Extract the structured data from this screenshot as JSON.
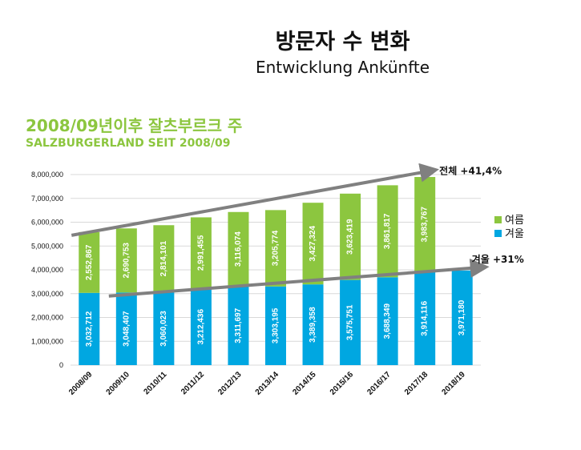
{
  "header": {
    "title_ko": "방문자 수 변화",
    "title_de": "Entwicklung Ankünfte",
    "subtitle_ko": "2008/09년이후 잘츠부르크 주",
    "subtitle_de": "SALZBURGERLAND SEIT 2008/09"
  },
  "chart_data": {
    "type": "bar",
    "stacked": true,
    "categories": [
      "2008/09",
      "2009/10",
      "2010/11",
      "2011/12",
      "2012/13",
      "2013/14",
      "2014/15",
      "2015/16",
      "2016/17",
      "2017/18",
      "2018/19"
    ],
    "series": [
      {
        "name": "겨울",
        "color": "#00a7e1",
        "values": [
          3032712,
          3048407,
          3060023,
          3212436,
          3311697,
          3303195,
          3389358,
          3575751,
          3688349,
          3914116,
          3971180
        ],
        "labels": [
          "3,032,712",
          "3,048,407",
          "3,060,023",
          "3,212,436",
          "3,311,697",
          "3,303,195",
          "3,389,358",
          "3,575,751",
          "3,688,349",
          "3,914,116",
          "3,971,180"
        ]
      },
      {
        "name": "여름",
        "color": "#8cc63f",
        "values": [
          2552867,
          2690753,
          2814101,
          2991455,
          3116074,
          3205774,
          3427324,
          3623419,
          3861817,
          3983767,
          null
        ],
        "labels": [
          "2,552,867",
          "2,690,753",
          "2,814,101",
          "2,991,455",
          "3,116,074",
          "3,205,774",
          "3,427,324",
          "3,623,419",
          "3,861,817",
          "3,983,767",
          ""
        ]
      }
    ],
    "ylim": [
      0,
      8000000
    ],
    "yticks": [
      0,
      1000000,
      2000000,
      3000000,
      4000000,
      5000000,
      6000000,
      7000000,
      8000000
    ],
    "ytick_labels": [
      "0",
      "1,000,000",
      "2,000,000",
      "3,000,000",
      "4,000,000",
      "5,000,000",
      "6,000,000",
      "7,000,000",
      "8,000,000"
    ],
    "grid": true,
    "legend_position": "right",
    "legend": [
      {
        "name": "여름",
        "color": "#8cc63f"
      },
      {
        "name": "겨울",
        "color": "#00a7e1"
      }
    ],
    "annotations": [
      {
        "text": "전체 +41,4%",
        "from_category": "2008/09",
        "from_value": 5450000,
        "to_category": "2017/18",
        "to_value": 8150000,
        "color": "#808080"
      },
      {
        "text": "겨울 +31%",
        "from_category": "2009/10",
        "from_value": 2900000,
        "to_category": "2018/19",
        "to_value": 4100000,
        "color": "#808080"
      }
    ]
  }
}
